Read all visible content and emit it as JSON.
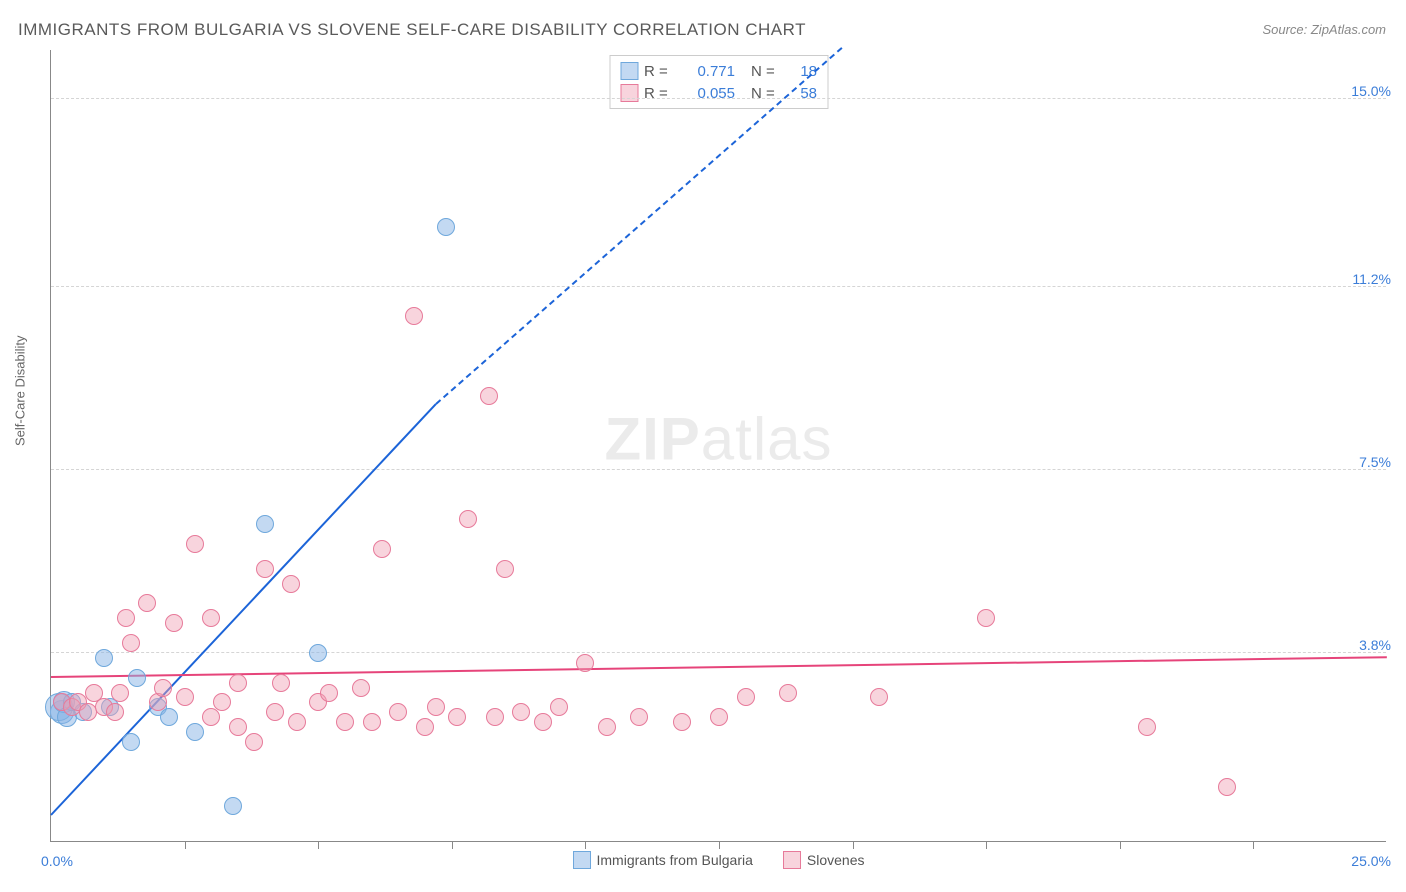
{
  "title": "IMMIGRANTS FROM BULGARIA VS SLOVENE SELF-CARE DISABILITY CORRELATION CHART",
  "source": "Source: ZipAtlas.com",
  "watermark_bold": "ZIP",
  "watermark_light": "atlas",
  "ylabel": "Self-Care Disability",
  "x_origin": "0.0%",
  "x_max": "25.0%",
  "x_range": [
    0,
    25
  ],
  "y_range": [
    0,
    16
  ],
  "x_ticks": [
    2.5,
    5,
    7.5,
    10,
    12.5,
    15,
    17.5,
    20,
    22.5
  ],
  "grid_lines": [
    {
      "y": 3.8,
      "label": "3.8%"
    },
    {
      "y": 7.5,
      "label": "7.5%"
    },
    {
      "y": 11.2,
      "label": "11.2%"
    },
    {
      "y": 15.0,
      "label": "15.0%"
    }
  ],
  "series": [
    {
      "id": "bulgaria",
      "label": "Immigrants from Bulgaria",
      "fill": "rgba(135,180,230,0.5)",
      "stroke": "#6fa8dc",
      "line_color": "#1c64d8",
      "r_value": "0.771",
      "n_value": "18",
      "regression": {
        "x1": 0,
        "y1": 0.5,
        "x2": 7.2,
        "y2": 8.8,
        "dashed_to_x": 14.8,
        "dashed_to_y": 17.5
      },
      "points": [
        {
          "x": 0.2,
          "y": 2.6,
          "r": 12
        },
        {
          "x": 0.15,
          "y": 2.7,
          "r": 14
        },
        {
          "x": 0.25,
          "y": 2.8,
          "r": 11
        },
        {
          "x": 0.3,
          "y": 2.5,
          "r": 10
        },
        {
          "x": 0.4,
          "y": 2.8,
          "r": 9
        },
        {
          "x": 0.6,
          "y": 2.6,
          "r": 9
        },
        {
          "x": 1.1,
          "y": 2.7,
          "r": 9
        },
        {
          "x": 1.0,
          "y": 3.7,
          "r": 9
        },
        {
          "x": 1.5,
          "y": 2.0,
          "r": 9
        },
        {
          "x": 1.6,
          "y": 3.3,
          "r": 9
        },
        {
          "x": 2.0,
          "y": 2.7,
          "r": 9
        },
        {
          "x": 2.2,
          "y": 2.5,
          "r": 9
        },
        {
          "x": 2.7,
          "y": 2.2,
          "r": 9
        },
        {
          "x": 3.4,
          "y": 0.7,
          "r": 9
        },
        {
          "x": 4.0,
          "y": 6.4,
          "r": 9
        },
        {
          "x": 5.0,
          "y": 3.8,
          "r": 9
        },
        {
          "x": 7.4,
          "y": 12.4,
          "r": 9
        }
      ]
    },
    {
      "id": "slovenes",
      "label": "Slovenes",
      "fill": "rgba(240,160,180,0.45)",
      "stroke": "#e77a9a",
      "line_color": "#e6447a",
      "r_value": "0.055",
      "n_value": "58",
      "regression": {
        "x1": 0,
        "y1": 3.3,
        "x2": 25,
        "y2": 3.7
      },
      "points": [
        {
          "x": 0.2,
          "y": 2.8,
          "r": 9
        },
        {
          "x": 0.4,
          "y": 2.7,
          "r": 9
        },
        {
          "x": 0.5,
          "y": 2.8,
          "r": 9
        },
        {
          "x": 0.7,
          "y": 2.6,
          "r": 9
        },
        {
          "x": 0.8,
          "y": 3.0,
          "r": 9
        },
        {
          "x": 1.0,
          "y": 2.7,
          "r": 9
        },
        {
          "x": 1.2,
          "y": 2.6,
          "r": 9
        },
        {
          "x": 1.3,
          "y": 3.0,
          "r": 9
        },
        {
          "x": 1.4,
          "y": 4.5,
          "r": 9
        },
        {
          "x": 1.5,
          "y": 4.0,
          "r": 9
        },
        {
          "x": 1.8,
          "y": 4.8,
          "r": 9
        },
        {
          "x": 2.0,
          "y": 2.8,
          "r": 9
        },
        {
          "x": 2.1,
          "y": 3.1,
          "r": 9
        },
        {
          "x": 2.3,
          "y": 4.4,
          "r": 9
        },
        {
          "x": 2.5,
          "y": 2.9,
          "r": 9
        },
        {
          "x": 2.7,
          "y": 6.0,
          "r": 9
        },
        {
          "x": 3.0,
          "y": 4.5,
          "r": 9
        },
        {
          "x": 3.0,
          "y": 2.5,
          "r": 9
        },
        {
          "x": 3.2,
          "y": 2.8,
          "r": 9
        },
        {
          "x": 3.5,
          "y": 2.3,
          "r": 9
        },
        {
          "x": 3.5,
          "y": 3.2,
          "r": 9
        },
        {
          "x": 3.8,
          "y": 2.0,
          "r": 9
        },
        {
          "x": 4.0,
          "y": 5.5,
          "r": 9
        },
        {
          "x": 4.2,
          "y": 2.6,
          "r": 9
        },
        {
          "x": 4.3,
          "y": 3.2,
          "r": 9
        },
        {
          "x": 4.5,
          "y": 5.2,
          "r": 9
        },
        {
          "x": 4.6,
          "y": 2.4,
          "r": 9
        },
        {
          "x": 5.0,
          "y": 2.8,
          "r": 9
        },
        {
          "x": 5.2,
          "y": 3.0,
          "r": 9
        },
        {
          "x": 5.5,
          "y": 2.4,
          "r": 9
        },
        {
          "x": 5.8,
          "y": 3.1,
          "r": 9
        },
        {
          "x": 6.0,
          "y": 2.4,
          "r": 9
        },
        {
          "x": 6.2,
          "y": 5.9,
          "r": 9
        },
        {
          "x": 6.5,
          "y": 2.6,
          "r": 9
        },
        {
          "x": 6.8,
          "y": 10.6,
          "r": 9
        },
        {
          "x": 7.0,
          "y": 2.3,
          "r": 9
        },
        {
          "x": 7.2,
          "y": 2.7,
          "r": 9
        },
        {
          "x": 7.6,
          "y": 2.5,
          "r": 9
        },
        {
          "x": 7.8,
          "y": 6.5,
          "r": 9
        },
        {
          "x": 8.2,
          "y": 9.0,
          "r": 9
        },
        {
          "x": 8.3,
          "y": 2.5,
          "r": 9
        },
        {
          "x": 8.5,
          "y": 5.5,
          "r": 9
        },
        {
          "x": 8.8,
          "y": 2.6,
          "r": 9
        },
        {
          "x": 9.2,
          "y": 2.4,
          "r": 9
        },
        {
          "x": 9.5,
          "y": 2.7,
          "r": 9
        },
        {
          "x": 10.0,
          "y": 3.6,
          "r": 9
        },
        {
          "x": 10.4,
          "y": 2.3,
          "r": 9
        },
        {
          "x": 11.0,
          "y": 2.5,
          "r": 9
        },
        {
          "x": 11.8,
          "y": 2.4,
          "r": 9
        },
        {
          "x": 12.5,
          "y": 2.5,
          "r": 9
        },
        {
          "x": 13.0,
          "y": 2.9,
          "r": 9
        },
        {
          "x": 13.8,
          "y": 3.0,
          "r": 9
        },
        {
          "x": 15.5,
          "y": 2.9,
          "r": 9
        },
        {
          "x": 17.5,
          "y": 4.5,
          "r": 9
        },
        {
          "x": 20.5,
          "y": 2.3,
          "r": 9
        },
        {
          "x": 22.0,
          "y": 1.1,
          "r": 9
        }
      ]
    }
  ]
}
